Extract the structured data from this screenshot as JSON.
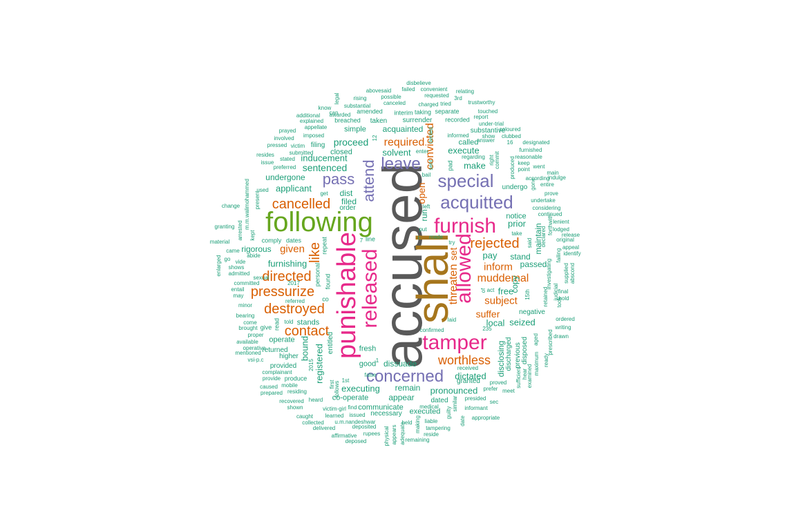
{
  "colors": {
    "gray": "#595959",
    "brown": "#a6761d",
    "magenta": "#e7298a",
    "green": "#66a61e",
    "purple": "#7570b3",
    "orange": "#d95f02",
    "teal": "#1b9e77"
  },
  "words": [
    {
      "text": "accused",
      "color": "gray"
    },
    {
      "text": "shall",
      "color": "brown"
    },
    {
      "text": "following",
      "color": "green"
    },
    {
      "text": "punishable",
      "color": "magenta"
    },
    {
      "text": "tamper",
      "color": "magenta"
    },
    {
      "text": "furnish",
      "color": "magenta"
    },
    {
      "text": "released",
      "color": "magenta"
    },
    {
      "text": "allowed",
      "color": "magenta"
    },
    {
      "text": "acquitted",
      "color": "purple"
    },
    {
      "text": "concerned",
      "color": "purple"
    },
    {
      "text": "special",
      "color": "purple"
    },
    {
      "text": "leave",
      "color": "purple"
    },
    {
      "text": "attend",
      "color": "purple"
    },
    {
      "text": "pass",
      "color": "purple"
    },
    {
      "text": "cancelled",
      "color": "orange"
    },
    {
      "text": "rejected",
      "color": "orange"
    },
    {
      "text": "pressurize",
      "color": "orange"
    },
    {
      "text": "destroyed",
      "color": "orange"
    },
    {
      "text": "directed",
      "color": "orange"
    },
    {
      "text": "contact",
      "color": "orange"
    },
    {
      "text": "worthless",
      "color": "orange"
    },
    {
      "text": "like",
      "color": "orange"
    },
    {
      "text": "required",
      "color": "orange"
    },
    {
      "text": "convicted",
      "color": "orange"
    },
    {
      "text": "threaten",
      "color": "orange"
    },
    {
      "text": "muddemal",
      "color": "orange"
    },
    {
      "text": "given",
      "color": "orange"
    },
    {
      "text": "inform",
      "color": "orange"
    },
    {
      "text": "subject",
      "color": "orange"
    },
    {
      "text": "suffer",
      "color": "orange"
    },
    {
      "text": "open",
      "color": "orange"
    },
    {
      "text": "set",
      "color": "orange"
    },
    {
      "text": "proceed",
      "color": "teal"
    },
    {
      "text": "sentenced",
      "color": "teal"
    },
    {
      "text": "inducement",
      "color": "teal"
    },
    {
      "text": "applicant",
      "color": "teal"
    },
    {
      "text": "undergone",
      "color": "teal"
    },
    {
      "text": "furnishing",
      "color": "teal"
    },
    {
      "text": "rigorous",
      "color": "teal"
    },
    {
      "text": "acquainted",
      "color": "teal"
    },
    {
      "text": "execute",
      "color": "teal"
    },
    {
      "text": "make",
      "color": "teal"
    },
    {
      "text": "solvent",
      "color": "teal"
    },
    {
      "text": "called",
      "color": "teal"
    },
    {
      "text": "prior",
      "color": "teal"
    },
    {
      "text": "pay",
      "color": "teal"
    },
    {
      "text": "stand",
      "color": "teal"
    },
    {
      "text": "passed",
      "color": "teal"
    },
    {
      "text": "free",
      "color": "teal"
    },
    {
      "text": "copy",
      "color": "teal"
    },
    {
      "text": "maintain",
      "color": "teal"
    },
    {
      "text": "local",
      "color": "teal"
    },
    {
      "text": "seized",
      "color": "teal"
    },
    {
      "text": "dictated",
      "color": "teal"
    },
    {
      "text": "disclosing",
      "color": "teal"
    },
    {
      "text": "executing",
      "color": "teal"
    },
    {
      "text": "remain",
      "color": "teal"
    },
    {
      "text": "pronounced",
      "color": "teal"
    },
    {
      "text": "appear",
      "color": "teal"
    },
    {
      "text": "dissuade",
      "color": "teal"
    },
    {
      "text": "registered",
      "color": "teal"
    },
    {
      "text": "bound",
      "color": "teal"
    },
    {
      "text": "stands",
      "color": "teal"
    },
    {
      "text": "co-operate",
      "color": "teal"
    },
    {
      "text": "communicate",
      "color": "teal"
    },
    {
      "text": "necessary",
      "color": "teal"
    },
    {
      "text": "executed",
      "color": "teal"
    },
    {
      "text": "simple",
      "color": "teal"
    },
    {
      "text": "closed",
      "color": "teal"
    },
    {
      "text": "filed",
      "color": "teal"
    },
    {
      "text": "dist",
      "color": "teal"
    },
    {
      "text": "order",
      "color": "teal"
    },
    {
      "text": "undergo",
      "color": "teal"
    },
    {
      "text": "notice",
      "color": "teal"
    },
    {
      "text": "substantive",
      "color": "teal"
    },
    {
      "text": "filing",
      "color": "teal"
    },
    {
      "text": "operate",
      "color": "teal"
    },
    {
      "text": "returned",
      "color": "teal"
    },
    {
      "text": "higher",
      "color": "teal"
    },
    {
      "text": "fresh",
      "color": "teal"
    },
    {
      "text": "good",
      "color": "teal"
    },
    {
      "text": "dated",
      "color": "teal"
    },
    {
      "text": "granted",
      "color": "teal"
    },
    {
      "text": "negative",
      "color": "teal"
    },
    {
      "text": "discharged",
      "color": "teal"
    },
    {
      "text": "previous",
      "color": "teal"
    },
    {
      "text": "disposed",
      "color": "teal"
    },
    {
      "text": "run",
      "color": "teal"
    },
    {
      "text": "surrender",
      "color": "teal"
    },
    {
      "text": "taken",
      "color": "teal"
    },
    {
      "text": "breached",
      "color": "teal"
    },
    {
      "text": "amended",
      "color": "teal"
    },
    {
      "text": "interim",
      "color": "teal"
    },
    {
      "text": "taking",
      "color": "teal"
    },
    {
      "text": "separate",
      "color": "teal"
    },
    {
      "text": "recorded",
      "color": "teal"
    },
    {
      "text": "m.m.walimohammed",
      "color": "teal"
    },
    {
      "text": "dates",
      "color": "teal"
    },
    {
      "text": "comply",
      "color": "teal"
    },
    {
      "text": "repeat",
      "color": "teal"
    },
    {
      "text": "personal",
      "color": "teal"
    },
    {
      "text": "found",
      "color": "teal"
    },
    {
      "text": "co",
      "color": "teal"
    },
    {
      "text": "sexual",
      "color": "teal"
    },
    {
      "text": "committed",
      "color": "teal"
    },
    {
      "text": "abide",
      "color": "teal"
    },
    {
      "text": "shows",
      "color": "teal"
    },
    {
      "text": "admitted",
      "color": "teal"
    },
    {
      "text": "told",
      "color": "teal"
    },
    {
      "text": "read",
      "color": "teal"
    },
    {
      "text": "entitled",
      "color": "teal"
    },
    {
      "text": "2015",
      "color": "teal"
    },
    {
      "text": "2017",
      "color": "teal"
    },
    {
      "text": "referred",
      "color": "teal"
    },
    {
      "text": "bearing",
      "color": "teal"
    },
    {
      "text": "come",
      "color": "teal"
    },
    {
      "text": "proper",
      "color": "teal"
    },
    {
      "text": "brought",
      "color": "teal"
    },
    {
      "text": "give",
      "color": "teal"
    },
    {
      "text": "available",
      "color": "teal"
    },
    {
      "text": "operative",
      "color": "teal"
    },
    {
      "text": "mentioned",
      "color": "teal"
    },
    {
      "text": "vsi-p.c",
      "color": "teal"
    },
    {
      "text": "provided",
      "color": "teal"
    },
    {
      "text": "complainant",
      "color": "teal"
    },
    {
      "text": "provide",
      "color": "teal"
    },
    {
      "text": "produce",
      "color": "teal"
    },
    {
      "text": "caused",
      "color": "teal"
    },
    {
      "text": "mobile",
      "color": "teal"
    },
    {
      "text": "prepared",
      "color": "teal"
    },
    {
      "text": "residing",
      "color": "teal"
    },
    {
      "text": "recovered",
      "color": "teal"
    },
    {
      "text": "heard",
      "color": "teal"
    },
    {
      "text": "shown",
      "color": "teal"
    },
    {
      "text": "caught",
      "color": "teal"
    },
    {
      "text": "collected",
      "color": "teal"
    },
    {
      "text": "delivered",
      "color": "teal"
    },
    {
      "text": "victim-girl",
      "color": "teal"
    },
    {
      "text": "learned",
      "color": "teal"
    },
    {
      "text": "issued",
      "color": "teal"
    },
    {
      "text": "u.m.nandeshwar",
      "color": "teal"
    },
    {
      "text": "find",
      "color": "teal"
    },
    {
      "text": "affirmative",
      "color": "teal"
    },
    {
      "text": "deposited",
      "color": "teal"
    },
    {
      "text": "rupees",
      "color": "teal"
    },
    {
      "text": "deposed",
      "color": "teal"
    },
    {
      "text": "physical",
      "color": "teal"
    },
    {
      "text": "appears",
      "color": "teal"
    },
    {
      "text": "adequate",
      "color": "teal"
    },
    {
      "text": "held",
      "color": "teal"
    },
    {
      "text": "making",
      "color": "teal"
    },
    {
      "text": "remaining",
      "color": "teal"
    },
    {
      "text": "medical",
      "color": "teal"
    },
    {
      "text": "liable",
      "color": "teal"
    },
    {
      "text": "reside",
      "color": "teal"
    },
    {
      "text": "tampering",
      "color": "teal"
    },
    {
      "text": "guilty",
      "color": "teal"
    },
    {
      "text": "similar",
      "color": "teal"
    },
    {
      "text": "date",
      "color": "teal"
    },
    {
      "text": "presided",
      "color": "teal"
    },
    {
      "text": "informant",
      "color": "teal"
    },
    {
      "text": "appropriate",
      "color": "teal"
    },
    {
      "text": "sec",
      "color": "teal"
    },
    {
      "text": "prefer",
      "color": "teal"
    },
    {
      "text": "meet",
      "color": "teal"
    },
    {
      "text": "proved",
      "color": "teal"
    },
    {
      "text": "received",
      "color": "teal"
    },
    {
      "text": "sufficient",
      "color": "teal"
    },
    {
      "text": "hear",
      "color": "teal"
    },
    {
      "text": "examined",
      "color": "teal"
    },
    {
      "text": "maximum",
      "color": "teal"
    },
    {
      "text": "aged",
      "color": "teal"
    },
    {
      "text": "ready",
      "color": "teal"
    },
    {
      "text": "prescribed",
      "color": "teal"
    },
    {
      "text": "drawn",
      "color": "teal"
    },
    {
      "text": "writing",
      "color": "teal"
    },
    {
      "text": "ordered",
      "color": "teal"
    },
    {
      "text": "hold",
      "color": "teal"
    },
    {
      "text": "final",
      "color": "teal"
    },
    {
      "text": "took",
      "color": "teal"
    },
    {
      "text": "judicial",
      "color": "teal"
    },
    {
      "text": "retained",
      "color": "teal"
    },
    {
      "text": "investigating",
      "color": "teal"
    },
    {
      "text": "15th",
      "color": "teal"
    },
    {
      "text": "declared",
      "color": "teal"
    },
    {
      "text": "said",
      "color": "teal"
    },
    {
      "text": "failing",
      "color": "teal"
    },
    {
      "text": "supplied",
      "color": "teal"
    },
    {
      "text": "abscond",
      "color": "teal"
    },
    {
      "text": "identify",
      "color": "teal"
    },
    {
      "text": "appeal",
      "color": "teal"
    },
    {
      "text": "original",
      "color": "teal"
    },
    {
      "text": "release",
      "color": "teal"
    },
    {
      "text": "lenient",
      "color": "teal"
    },
    {
      "text": "lodged",
      "color": "teal"
    },
    {
      "text": "continued",
      "color": "teal"
    },
    {
      "text": "forthwith",
      "color": "teal"
    },
    {
      "text": "considering",
      "color": "teal"
    },
    {
      "text": "undertake",
      "color": "teal"
    },
    {
      "text": "prove",
      "color": "teal"
    },
    {
      "text": "entire",
      "color": "teal"
    },
    {
      "text": "indulge",
      "color": "teal"
    },
    {
      "text": "according",
      "color": "teal"
    },
    {
      "text": "main",
      "color": "teal"
    },
    {
      "text": "gone",
      "color": "teal"
    },
    {
      "text": "went",
      "color": "teal"
    },
    {
      "text": "keep",
      "color": "teal"
    },
    {
      "text": "point",
      "color": "teal"
    },
    {
      "text": "reasonable",
      "color": "teal"
    },
    {
      "text": "produced",
      "color": "teal"
    },
    {
      "text": "furnished",
      "color": "teal"
    },
    {
      "text": "designated",
      "color": "teal"
    },
    {
      "text": "clubbed",
      "color": "teal"
    },
    {
      "text": "coloured",
      "color": "teal"
    },
    {
      "text": "16",
      "color": "teal"
    },
    {
      "text": "show",
      "color": "teal"
    },
    {
      "text": "commit",
      "color": "teal"
    },
    {
      "text": "right",
      "color": "teal"
    },
    {
      "text": "answer",
      "color": "teal"
    },
    {
      "text": "under-trial",
      "color": "teal"
    },
    {
      "text": "report",
      "color": "teal"
    },
    {
      "text": "touched",
      "color": "teal"
    },
    {
      "text": "informed",
      "color": "teal"
    },
    {
      "text": "regarding",
      "color": "teal"
    },
    {
      "text": "pad",
      "color": "teal"
    },
    {
      "text": "sent",
      "color": "teal"
    },
    {
      "text": "denied",
      "color": "teal"
    },
    {
      "text": "bail",
      "color": "teal"
    },
    {
      "text": "enter",
      "color": "teal"
    },
    {
      "text": "charged",
      "color": "teal"
    },
    {
      "text": "tried",
      "color": "teal"
    },
    {
      "text": "3rd",
      "color": "teal"
    },
    {
      "text": "trustworthy",
      "color": "teal"
    },
    {
      "text": "relating",
      "color": "teal"
    },
    {
      "text": "convenient",
      "color": "teal"
    },
    {
      "text": "requested",
      "color": "teal"
    },
    {
      "text": "failed",
      "color": "teal"
    },
    {
      "text": "disbelieve",
      "color": "teal"
    },
    {
      "text": "abovesaid",
      "color": "teal"
    },
    {
      "text": "possible",
      "color": "teal"
    },
    {
      "text": "canceled",
      "color": "teal"
    },
    {
      "text": "rising",
      "color": "teal"
    },
    {
      "text": "substantial",
      "color": "teal"
    },
    {
      "text": "legal",
      "color": "teal"
    },
    {
      "text": "know",
      "color": "teal"
    },
    {
      "text": "can",
      "color": "teal"
    },
    {
      "text": "awarded",
      "color": "teal"
    },
    {
      "text": "additional",
      "color": "teal"
    },
    {
      "text": "explained",
      "color": "teal"
    },
    {
      "text": "appellate",
      "color": "teal"
    },
    {
      "text": "imposed",
      "color": "teal"
    },
    {
      "text": "prayed",
      "color": "teal"
    },
    {
      "text": "involved",
      "color": "teal"
    },
    {
      "text": "pressed",
      "color": "teal"
    },
    {
      "text": "victim",
      "color": "teal"
    },
    {
      "text": "submitted",
      "color": "teal"
    },
    {
      "text": "resides",
      "color": "teal"
    },
    {
      "text": "stated",
      "color": "teal"
    },
    {
      "text": "issue",
      "color": "teal"
    },
    {
      "text": "preferred",
      "color": "teal"
    },
    {
      "text": "used",
      "color": "teal"
    },
    {
      "text": "present",
      "color": "teal"
    },
    {
      "text": "get",
      "color": "teal"
    },
    {
      "text": "change",
      "color": "teal"
    },
    {
      "text": "granting",
      "color": "teal"
    },
    {
      "text": "arrested",
      "color": "teal"
    },
    {
      "text": "kept",
      "color": "teal"
    },
    {
      "text": "material",
      "color": "teal"
    },
    {
      "text": "came",
      "color": "teal"
    },
    {
      "text": "go",
      "color": "teal"
    },
    {
      "text": "vide",
      "color": "teal"
    },
    {
      "text": "enlarged",
      "color": "teal"
    },
    {
      "text": "entail",
      "color": "teal"
    },
    {
      "text": "may",
      "color": "teal"
    },
    {
      "text": "minor",
      "color": "teal"
    },
    {
      "text": "put",
      "color": "teal"
    },
    {
      "text": "made",
      "color": "teal"
    },
    {
      "text": "left",
      "color": "teal"
    },
    {
      "text": "try",
      "color": "teal"
    },
    {
      "text": "take",
      "color": "teal"
    },
    {
      "text": "laid",
      "color": "teal"
    },
    {
      "text": "act",
      "color": "teal"
    },
    {
      "text": "of",
      "color": "teal"
    },
    {
      "text": "confirmed",
      "color": "teal"
    },
    {
      "text": "235",
      "color": "teal"
    },
    {
      "text": "i-",
      "color": "teal"
    },
    {
      "text": "line",
      "color": "teal"
    },
    {
      "text": "7",
      "color": "teal"
    },
    {
      "text": "1",
      "color": "teal"
    },
    {
      "text": "12",
      "color": "teal"
    },
    {
      "text": "1st",
      "color": "teal"
    },
    {
      "text": "false",
      "color": "teal"
    },
    {
      "text": "first",
      "color": "teal"
    },
    {
      "text": "follows",
      "color": "teal"
    }
  ]
}
